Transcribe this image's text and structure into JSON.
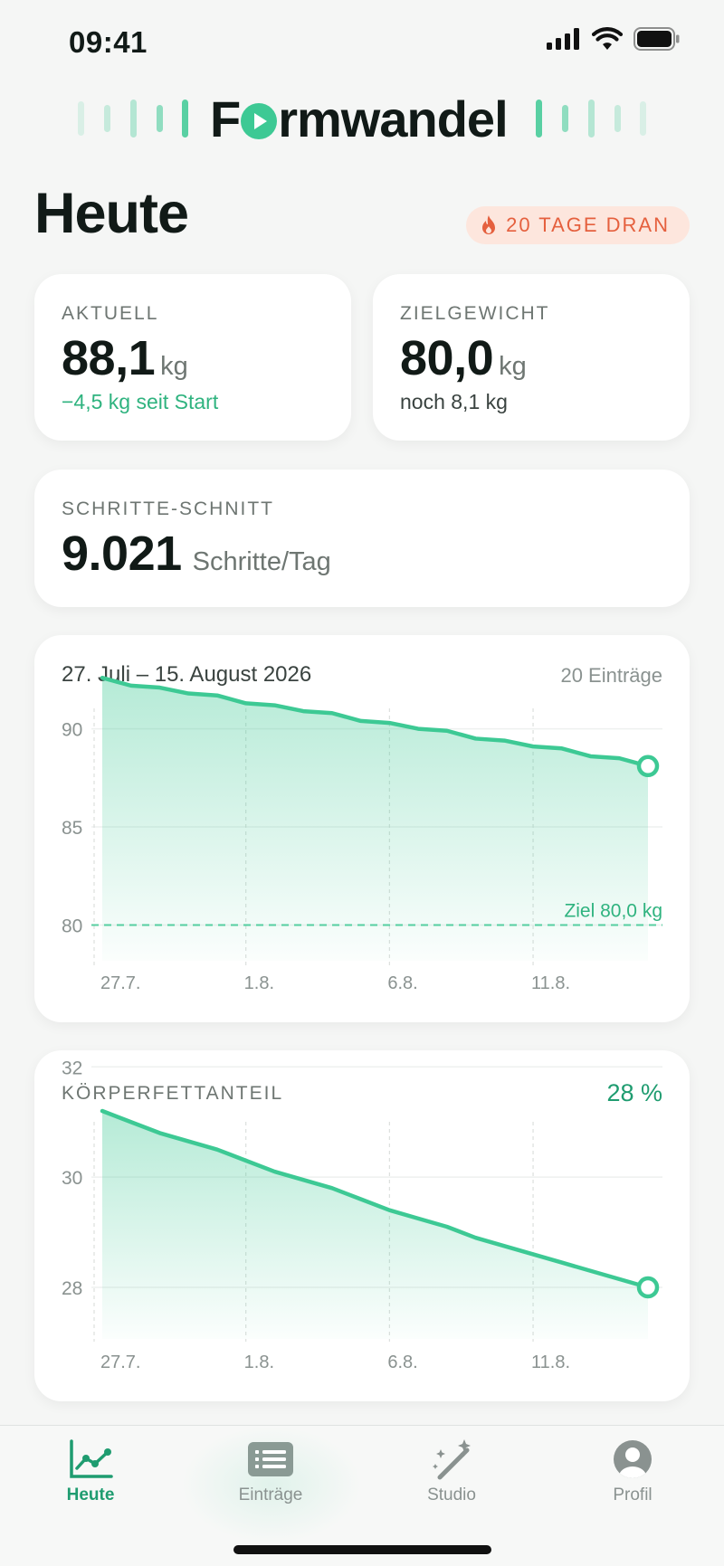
{
  "status_bar": {
    "time": "09:41"
  },
  "app": {
    "logo_pre": "F",
    "logo_post": "rmwandel"
  },
  "header": {
    "title": "Heute",
    "streak": "20 TAGE DRAN"
  },
  "cards": {
    "current": {
      "label": "AKTUELL",
      "value": "88,1",
      "unit": "kg",
      "delta": "−4,5 kg seit Start"
    },
    "goal": {
      "label": "ZIELGEWICHT",
      "value": "80,0",
      "unit": "kg",
      "remaining": "noch 8,1 kg"
    },
    "steps": {
      "label": "SCHRITTE-SCHNITT",
      "value": "9.021",
      "unit": "Schritte/Tag"
    }
  },
  "weight_chart": {
    "range": "27. Juli – 15. August 2026",
    "entries": "20 Einträge"
  },
  "bodyfat_chart": {
    "label": "KÖRPERFETTANTEIL",
    "current": "28 %"
  },
  "tabs": [
    {
      "label": "Heute",
      "icon": "chart-line-icon",
      "active": true
    },
    {
      "label": "Einträge",
      "icon": "list-icon",
      "active": false
    },
    {
      "label": "Studio",
      "icon": "magic-wand-icon",
      "active": false
    },
    {
      "label": "Profil",
      "icon": "profile-icon",
      "active": false
    }
  ],
  "colors": {
    "accent": "#3dc994",
    "accent_dark": "#1f9c70",
    "streak": "#e5603e",
    "text": "#111a17"
  },
  "chart_data": [
    {
      "type": "area",
      "title": "27. Juli – 15. August 2026",
      "x_ticks": [
        "27.7.",
        "1.8.",
        "6.8.",
        "11.8."
      ],
      "x_tick_index": [
        0,
        5,
        10,
        15
      ],
      "y_ticks": [
        80,
        85,
        90
      ],
      "ylim": [
        78.5,
        94.5
      ],
      "series": [
        {
          "values": [
            92.6,
            92.2,
            92.1,
            91.8,
            91.7,
            91.3,
            91.2,
            90.9,
            90.8,
            90.4,
            90.3,
            90.0,
            89.9,
            89.5,
            89.4,
            89.1,
            89.0,
            88.6,
            88.5,
            88.1
          ]
        }
      ],
      "goal_line": {
        "value": 80.0,
        "label": "Ziel 80,0 kg"
      },
      "grid": true
    },
    {
      "type": "area",
      "title": "KÖRPERFETTANTEIL",
      "x_ticks": [
        "27.7.",
        "1.8.",
        "6.8.",
        "11.8."
      ],
      "x_tick_index": [
        0,
        5,
        10,
        15
      ],
      "y_ticks": [
        28,
        30,
        32
      ],
      "ylim": [
        26.95,
        32.3
      ],
      "series": [
        {
          "values": [
            31.2,
            31.0,
            30.8,
            30.65,
            30.5,
            30.3,
            30.1,
            29.95,
            29.8,
            29.6,
            29.4,
            29.25,
            29.1,
            28.9,
            28.75,
            28.6,
            28.45,
            28.3,
            28.15,
            28.0
          ]
        }
      ],
      "grid": true
    }
  ]
}
